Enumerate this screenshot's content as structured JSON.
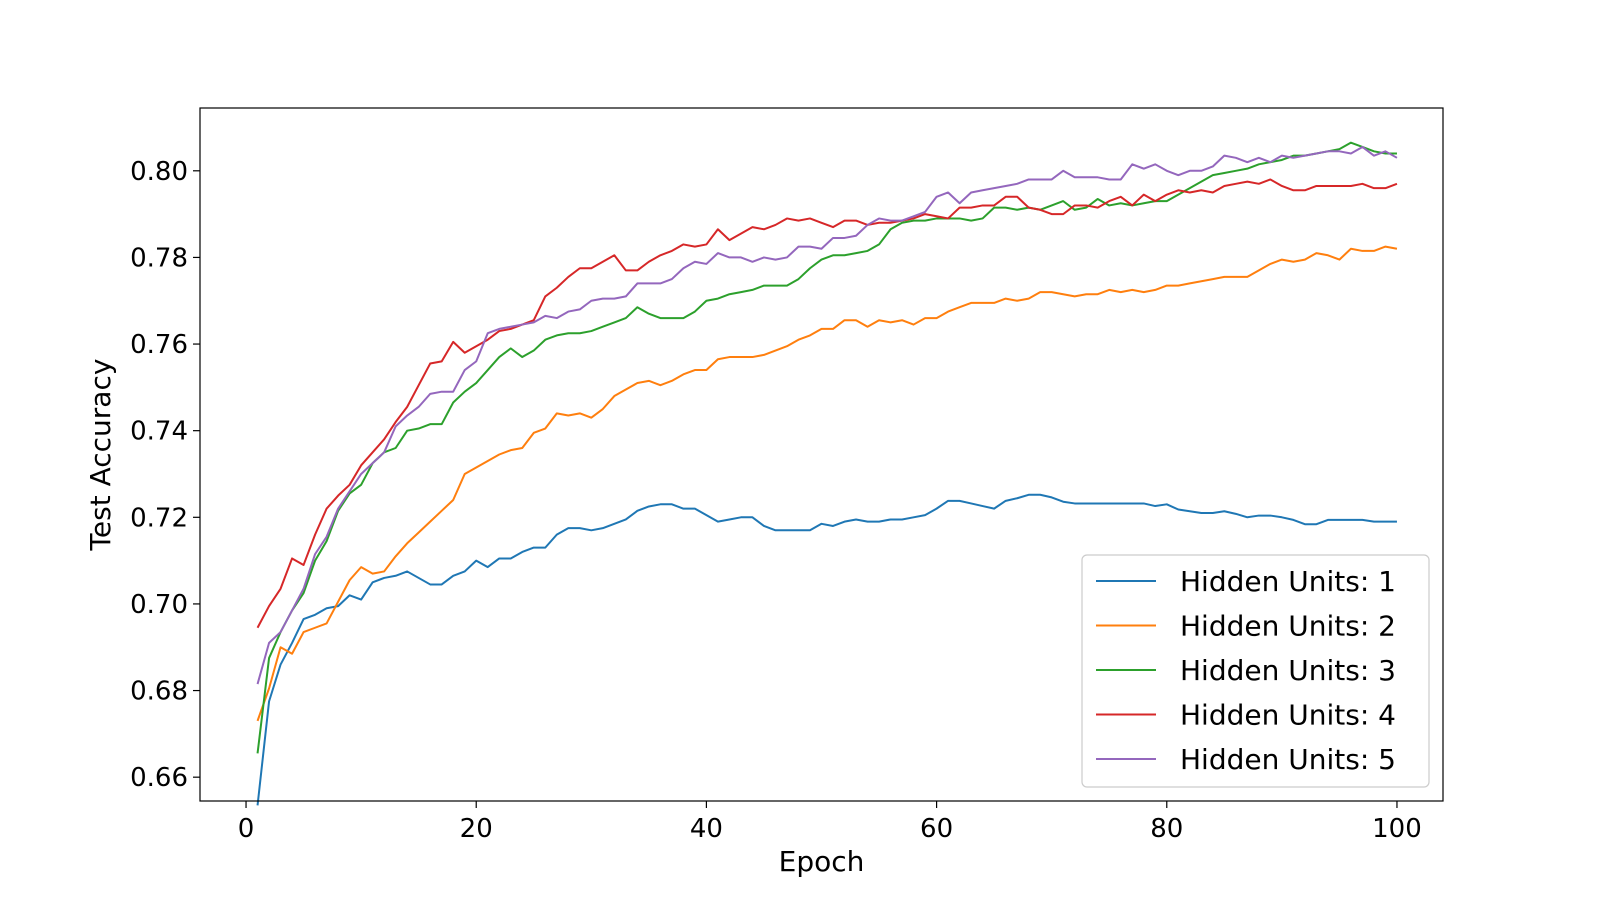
{
  "chart_data": {
    "type": "line",
    "title": "",
    "xlabel": "Epoch",
    "ylabel": "Test Accuracy",
    "xlim": [
      -4,
      104
    ],
    "ylim": [
      0.6545,
      0.8145
    ],
    "xticks": [
      0,
      20,
      40,
      60,
      80,
      100
    ],
    "yticks": [
      0.66,
      0.68,
      0.7,
      0.72,
      0.74,
      0.76,
      0.78,
      0.8
    ],
    "grid": false,
    "legend_position": "lower-right",
    "x": [
      1,
      2,
      3,
      4,
      5,
      6,
      7,
      8,
      9,
      10,
      11,
      12,
      13,
      14,
      15,
      16,
      17,
      18,
      19,
      20,
      21,
      22,
      23,
      24,
      25,
      26,
      27,
      28,
      29,
      30,
      31,
      32,
      33,
      34,
      35,
      36,
      37,
      38,
      39,
      40,
      41,
      42,
      43,
      44,
      45,
      46,
      47,
      48,
      49,
      50,
      51,
      52,
      53,
      54,
      55,
      56,
      57,
      58,
      59,
      60,
      61,
      62,
      63,
      64,
      65,
      66,
      67,
      68,
      69,
      70,
      71,
      72,
      73,
      74,
      75,
      76,
      77,
      78,
      79,
      80,
      81,
      82,
      83,
      84,
      85,
      86,
      87,
      88,
      89,
      90,
      91,
      92,
      93,
      94,
      95,
      96,
      97,
      98,
      99,
      100
    ],
    "series": [
      {
        "name": "Hidden Units: 1",
        "color": "#1f77b4",
        "values": [
          0.6535,
          0.6775,
          0.686,
          0.691,
          0.6965,
          0.6975,
          0.699,
          0.6995,
          0.702,
          0.701,
          0.705,
          0.706,
          0.7065,
          0.7075,
          0.706,
          0.7045,
          0.7045,
          0.7065,
          0.7075,
          0.71,
          0.7085,
          0.7105,
          0.7105,
          0.712,
          0.713,
          0.713,
          0.716,
          0.7175,
          0.7175,
          0.717,
          0.7175,
          0.7185,
          0.7195,
          0.7215,
          0.7225,
          0.723,
          0.723,
          0.722,
          0.722,
          0.7205,
          0.719,
          0.7195,
          0.72,
          0.72,
          0.718,
          0.717,
          0.717,
          0.717,
          0.717,
          0.7185,
          0.718,
          0.719,
          0.7195,
          0.719,
          0.719,
          0.7195,
          0.7195,
          0.72,
          0.7205,
          0.722,
          0.7238,
          0.7238,
          0.7232,
          0.7226,
          0.722,
          0.7238,
          0.7244,
          0.7252,
          0.7252,
          0.7246,
          0.7236,
          0.7232,
          0.7232,
          0.7232,
          0.7232,
          0.7232,
          0.7232,
          0.7232,
          0.7226,
          0.723,
          0.7218,
          0.7214,
          0.721,
          0.721,
          0.7214,
          0.7208,
          0.72,
          0.7204,
          0.7204,
          0.72,
          0.7194,
          0.7184,
          0.7184,
          0.7194,
          0.7194,
          0.7194,
          0.7194,
          0.719,
          0.719,
          0.719
        ]
      },
      {
        "name": "Hidden Units: 2",
        "color": "#ff7f0e",
        "values": [
          0.673,
          0.6805,
          0.69,
          0.6885,
          0.6935,
          0.6945,
          0.6955,
          0.7005,
          0.7055,
          0.7085,
          0.707,
          0.7075,
          0.711,
          0.714,
          0.7165,
          0.719,
          0.7215,
          0.724,
          0.73,
          0.7315,
          0.733,
          0.7345,
          0.7355,
          0.736,
          0.7395,
          0.7405,
          0.744,
          0.7435,
          0.744,
          0.743,
          0.745,
          0.748,
          0.7495,
          0.751,
          0.7515,
          0.7505,
          0.7515,
          0.753,
          0.754,
          0.754,
          0.7565,
          0.757,
          0.757,
          0.757,
          0.7575,
          0.7585,
          0.7595,
          0.761,
          0.762,
          0.7635,
          0.7635,
          0.7655,
          0.7655,
          0.764,
          0.7655,
          0.765,
          0.7655,
          0.7645,
          0.766,
          0.766,
          0.7675,
          0.7685,
          0.7695,
          0.7695,
          0.7695,
          0.7705,
          0.77,
          0.7705,
          0.772,
          0.772,
          0.7715,
          0.771,
          0.7715,
          0.7715,
          0.7725,
          0.772,
          0.7725,
          0.772,
          0.7725,
          0.7735,
          0.7735,
          0.774,
          0.7745,
          0.775,
          0.7755,
          0.7755,
          0.7755,
          0.777,
          0.7785,
          0.7795,
          0.779,
          0.7795,
          0.781,
          0.7805,
          0.7795,
          0.782,
          0.7815,
          0.7815,
          0.7825,
          0.782
        ]
      },
      {
        "name": "Hidden Units: 3",
        "color": "#2ca02c",
        "values": [
          0.6655,
          0.6875,
          0.6935,
          0.6985,
          0.7025,
          0.71,
          0.7145,
          0.7215,
          0.7255,
          0.7275,
          0.7325,
          0.735,
          0.736,
          0.74,
          0.7405,
          0.7415,
          0.7415,
          0.7465,
          0.749,
          0.751,
          0.754,
          0.757,
          0.759,
          0.757,
          0.7585,
          0.761,
          0.762,
          0.7625,
          0.7625,
          0.763,
          0.764,
          0.765,
          0.766,
          0.7685,
          0.767,
          0.766,
          0.766,
          0.766,
          0.7675,
          0.77,
          0.7705,
          0.7715,
          0.772,
          0.7725,
          0.7735,
          0.7735,
          0.7735,
          0.775,
          0.7775,
          0.7795,
          0.7805,
          0.7805,
          0.781,
          0.7815,
          0.783,
          0.7865,
          0.788,
          0.7885,
          0.7885,
          0.789,
          0.789,
          0.789,
          0.7885,
          0.789,
          0.7915,
          0.7915,
          0.791,
          0.7915,
          0.791,
          0.792,
          0.793,
          0.791,
          0.7915,
          0.7935,
          0.792,
          0.7925,
          0.792,
          0.7925,
          0.793,
          0.793,
          0.7945,
          0.796,
          0.7975,
          0.799,
          0.7995,
          0.8,
          0.8005,
          0.8015,
          0.802,
          0.8025,
          0.8035,
          0.8035,
          0.804,
          0.8045,
          0.805,
          0.8065,
          0.8055,
          0.8045,
          0.804,
          0.804
        ]
      },
      {
        "name": "Hidden Units: 4",
        "color": "#d62728",
        "values": [
          0.6945,
          0.6995,
          0.7035,
          0.7105,
          0.709,
          0.716,
          0.722,
          0.725,
          0.7275,
          0.732,
          0.735,
          0.738,
          0.742,
          0.7455,
          0.7505,
          0.7555,
          0.756,
          0.7605,
          0.758,
          0.7595,
          0.761,
          0.763,
          0.7635,
          0.7645,
          0.7655,
          0.771,
          0.773,
          0.7755,
          0.7775,
          0.7775,
          0.779,
          0.7805,
          0.777,
          0.777,
          0.779,
          0.7805,
          0.7815,
          0.783,
          0.7825,
          0.783,
          0.7865,
          0.784,
          0.7855,
          0.787,
          0.7865,
          0.7875,
          0.789,
          0.7885,
          0.789,
          0.788,
          0.787,
          0.7885,
          0.7885,
          0.7875,
          0.788,
          0.788,
          0.7885,
          0.789,
          0.79,
          0.7895,
          0.789,
          0.7915,
          0.7915,
          0.792,
          0.792,
          0.794,
          0.794,
          0.7915,
          0.791,
          0.79,
          0.79,
          0.792,
          0.792,
          0.7915,
          0.793,
          0.794,
          0.792,
          0.7945,
          0.793,
          0.7945,
          0.7955,
          0.795,
          0.7955,
          0.795,
          0.7965,
          0.797,
          0.7975,
          0.797,
          0.798,
          0.7965,
          0.7955,
          0.7955,
          0.7965,
          0.7965,
          0.7965,
          0.7965,
          0.797,
          0.796,
          0.796,
          0.797
        ]
      },
      {
        "name": "Hidden Units: 5",
        "color": "#9467bd",
        "values": [
          0.6815,
          0.691,
          0.6935,
          0.6985,
          0.7035,
          0.7115,
          0.7155,
          0.722,
          0.726,
          0.73,
          0.7325,
          0.735,
          0.741,
          0.7435,
          0.7455,
          0.7485,
          0.749,
          0.749,
          0.754,
          0.756,
          0.7625,
          0.7635,
          0.764,
          0.7645,
          0.765,
          0.7665,
          0.766,
          0.7675,
          0.768,
          0.77,
          0.7705,
          0.7705,
          0.771,
          0.774,
          0.774,
          0.774,
          0.775,
          0.7775,
          0.779,
          0.7785,
          0.781,
          0.78,
          0.78,
          0.779,
          0.78,
          0.7795,
          0.78,
          0.7825,
          0.7825,
          0.782,
          0.7845,
          0.7845,
          0.785,
          0.7875,
          0.789,
          0.7885,
          0.7885,
          0.7895,
          0.7905,
          0.794,
          0.795,
          0.7925,
          0.795,
          0.7955,
          0.796,
          0.7965,
          0.797,
          0.798,
          0.798,
          0.798,
          0.8,
          0.7985,
          0.7985,
          0.7985,
          0.798,
          0.798,
          0.8015,
          0.8005,
          0.8015,
          0.8,
          0.799,
          0.8,
          0.8,
          0.801,
          0.8035,
          0.803,
          0.802,
          0.803,
          0.802,
          0.8035,
          0.803,
          0.8035,
          0.804,
          0.8045,
          0.8045,
          0.804,
          0.8055,
          0.8035,
          0.8045,
          0.803
        ]
      }
    ]
  }
}
